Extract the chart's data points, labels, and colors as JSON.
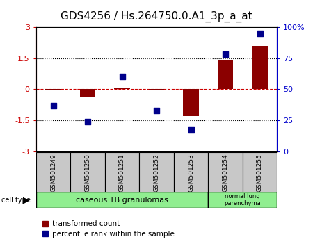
{
  "title": "GDS4256 / Hs.264750.0.A1_3p_a_at",
  "samples": [
    "GSM501249",
    "GSM501250",
    "GSM501251",
    "GSM501252",
    "GSM501253",
    "GSM501254",
    "GSM501255"
  ],
  "transformed_count": [
    -0.05,
    -0.35,
    0.07,
    -0.07,
    -1.3,
    1.4,
    2.1
  ],
  "percentile_rank": [
    37,
    24,
    60,
    33,
    17,
    78,
    95
  ],
  "ylim_left": [
    -3,
    3
  ],
  "ylim_right": [
    0,
    100
  ],
  "yticks_left": [
    -3,
    -1.5,
    0,
    1.5,
    3
  ],
  "yticks_right": [
    0,
    25,
    50,
    75,
    100
  ],
  "ytick_labels_right": [
    "0",
    "25",
    "50",
    "75",
    "100%"
  ],
  "bar_color": "#8B0000",
  "dot_color": "#00008B",
  "plot_bg_color": "#ffffff",
  "sample_box_color": "#C8C8C8",
  "group1_label": "caseous TB granulomas",
  "group2_label": "normal lung\nparenchyma",
  "group1_indices": [
    0,
    1,
    2,
    3,
    4
  ],
  "group2_indices": [
    5,
    6
  ],
  "group_color": "#90EE90",
  "cell_type_label": "cell type",
  "legend_red_label": "transformed count",
  "legend_blue_label": "percentile rank within the sample",
  "bar_width": 0.45,
  "dot_size": 40,
  "title_fontsize": 11,
  "axis_fontsize": 8,
  "sample_fontsize": 6.5,
  "group_fontsize": 8,
  "legend_fontsize": 7.5
}
